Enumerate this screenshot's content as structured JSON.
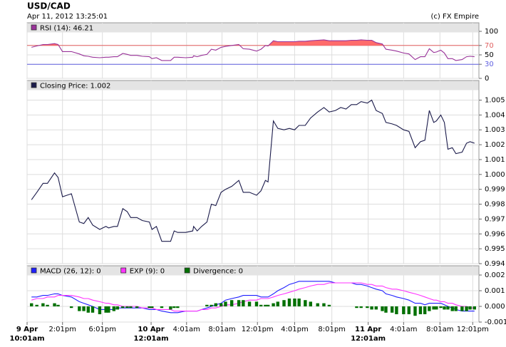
{
  "title": "USD/CAD",
  "subtitle": "Apr 11, 2012 13:25:01",
  "source": "(c) FX Empire",
  "chart_data": [
    {
      "type": "line",
      "ylim": [
        0,
        100
      ],
      "yticks": [
        0,
        30,
        50,
        70,
        100
      ],
      "grid": true,
      "ref_lines": [
        {
          "value": 70,
          "color": "#e06060"
        },
        {
          "value": 30,
          "color": "#6060e0"
        }
      ],
      "series": [
        {
          "name": "RSI (14): 46.21",
          "color": "#993399",
          "fill_above": 70,
          "fill_color": "#ff6b6b",
          "values": [
            66,
            69,
            72,
            72,
            74,
            72,
            57,
            57,
            52,
            48,
            47,
            45,
            44,
            45,
            45,
            46,
            46,
            53,
            51,
            49,
            49,
            47,
            46,
            42,
            44,
            38,
            38,
            45,
            45,
            44,
            45,
            48,
            46,
            49,
            51,
            62,
            60,
            66,
            68,
            70,
            72,
            63,
            62,
            58,
            62,
            70,
            69,
            80,
            78,
            78,
            78,
            78,
            79,
            79,
            80,
            81,
            82,
            80,
            80,
            80,
            80,
            81,
            81,
            82,
            81,
            81,
            76,
            73,
            62,
            60,
            58,
            54,
            52,
            40,
            46,
            46,
            63,
            55,
            56,
            60,
            54,
            42,
            42,
            38,
            40,
            46,
            47,
            46
          ]
        }
      ]
    },
    {
      "type": "line",
      "ylim": [
        0.994,
        1.0056
      ],
      "grid": true,
      "yticks": [
        0.994,
        0.995,
        0.996,
        0.997,
        0.998,
        0.999,
        {
          "value": 1,
          "label": "1.000"
        },
        1.001,
        1.002,
        1.003,
        1.004,
        1.005
      ],
      "series": [
        {
          "name": "Closing Price: 1.002",
          "color": "#1a1a4a",
          "values": [
            0.9983,
            0.9988,
            0.9994,
            0.9994,
            1.0001,
            0.9998,
            0.9985,
            0.9987,
            0.9968,
            0.9967,
            0.9971,
            0.9966,
            0.9963,
            0.9965,
            0.9964,
            0.9965,
            0.9965,
            0.9977,
            0.9975,
            0.9971,
            0.9971,
            0.9969,
            0.9968,
            0.9963,
            0.9965,
            0.9955,
            0.9955,
            0.9962,
            0.9961,
            0.9961,
            0.9962,
            0.9965,
            0.9962,
            0.9965,
            0.9968,
            0.998,
            0.9979,
            0.9988,
            0.999,
            0.9992,
            0.9996,
            0.9988,
            0.9988,
            0.9986,
            0.9989,
            0.9996,
            0.9995,
            1.0036,
            1.0031,
            1.003,
            1.0031,
            1.003,
            1.0033,
            1.0033,
            1.0038,
            1.0042,
            1.0045,
            1.0042,
            1.0043,
            1.0045,
            1.0044,
            1.0047,
            1.0047,
            1.0049,
            1.0048,
            1.005,
            1.0043,
            1.0041,
            1.0035,
            1.0034,
            1.0033,
            1.003,
            1.0029,
            1.0018,
            1.0022,
            1.0023,
            1.0043,
            1.0035,
            1.0036,
            1.004,
            1.0035,
            1.0017,
            1.0018,
            1.0014,
            1.0015,
            1.0021,
            1.0022,
            1.0021
          ]
        }
      ]
    },
    {
      "type": "line",
      "ylim": [
        -0.001,
        0.002
      ],
      "grid": true,
      "yticks": [
        -0.001,
        {
          "value": 0,
          "label": "0.000"
        },
        0.001,
        0.002
      ],
      "xlim": [
        0,
        51
      ],
      "xticks": [
        {
          "value": 0,
          "label": [
            "9 Apr",
            "10:01am"
          ]
        },
        {
          "value": 4,
          "label": "2:01pm"
        },
        {
          "value": 8.5,
          "label": "6:01pm"
        },
        {
          "value": 14,
          "label": [
            "10 Apr",
            "12:01am"
          ]
        },
        {
          "value": 18,
          "label": "4:01am"
        },
        {
          "value": 22,
          "label": "8:01am"
        },
        {
          "value": 26,
          "label": "12:01pm"
        },
        {
          "value": 30.2,
          "label": "4:01pm"
        },
        {
          "value": 34.4,
          "label": "8:01pm"
        },
        {
          "value": 38.5,
          "label": [
            "11 Apr",
            "12:01am"
          ]
        },
        {
          "value": 42.5,
          "label": "4:01am"
        },
        {
          "value": 46.6,
          "label": "8:01am"
        },
        {
          "value": 50.3,
          "label": "12:01pm"
        }
      ],
      "x": [
        0.5,
        1.1,
        1.8,
        2.3,
        3.1,
        3.5,
        4.0,
        5.0,
        5.9,
        6.4,
        6.9,
        7.4,
        8.2,
        8.9,
        9.2,
        9.8,
        10.2,
        10.8,
        11.3,
        11.7,
        12.4,
        13.0,
        13.8,
        14.1,
        14.6,
        15.2,
        16.2,
        16.6,
        17.0,
        17.9,
        18.7,
        18.8,
        19.2,
        19.7,
        20.3,
        20.8,
        21.3,
        21.9,
        22.4,
        23.1,
        23.9,
        24.4,
        25.1,
        25.9,
        26.4,
        26.9,
        27.2,
        27.8,
        28.3,
        29.0,
        29.6,
        30.2,
        30.7,
        31.4,
        32.0,
        32.8,
        33.5,
        34.1,
        34.8,
        35.4,
        36.0,
        36.6,
        37.2,
        37.7,
        38.4,
        38.9,
        39.4,
        40.1,
        40.5,
        41.2,
        41.7,
        42.5,
        43.1,
        43.8,
        44.4,
        44.9,
        45.4,
        45.9,
        46.2,
        46.7,
        47.1,
        47.5,
        48.0,
        48.4,
        49.1,
        49.6,
        50.0,
        50.5
      ],
      "series": [
        {
          "name": "MACD (26, 12): 0",
          "color": "#1f1fff",
          "values": [
            0.0006,
            0.0006,
            0.0007,
            0.0007,
            0.0008,
            0.0008,
            0.0007,
            0.0006,
            0.0003,
            0.0002,
            0.0001,
            0,
            -0.0002,
            -0.0002,
            -0.0002,
            -0.0002,
            -0.0001,
            -0.0001,
            -0.0001,
            -0.0001,
            -0.0001,
            -0.0001,
            -0.0002,
            -0.0002,
            -0.0002,
            -0.0003,
            -0.0004,
            -0.0004,
            -0.0004,
            -0.0003,
            -0.0003,
            -0.0003,
            -0.0003,
            -0.0002,
            -0.0001,
            0,
            0.0001,
            0.0002,
            0.0004,
            0.0005,
            0.0006,
            0.0007,
            0.0007,
            0.0007,
            0.0006,
            0.0006,
            0.0006,
            0.0008,
            0.001,
            0.0012,
            0.0014,
            0.0015,
            0.0016,
            0.0016,
            0.0016,
            0.0016,
            0.0016,
            0.0016,
            0.0015,
            0.0015,
            0.0015,
            0.0015,
            0.0014,
            0.0014,
            0.0013,
            0.0012,
            0.0011,
            0.001,
            0.0008,
            0.0007,
            0.0006,
            0.0005,
            0.0004,
            0.0002,
            0.0002,
            0.0001,
            0.0002,
            0.0002,
            0.0002,
            0.0002,
            0.0001,
            0,
            -0.0001,
            -0.0002,
            -0.0003,
            -0.0003,
            -0.0003,
            -0.0003
          ]
        },
        {
          "name": "EXP (9): 0",
          "color": "#ff33ff",
          "values": [
            0.0004,
            0.0005,
            0.0005,
            0.0006,
            0.0006,
            0.0007,
            0.0007,
            0.0007,
            0.0006,
            0.0005,
            0.0005,
            0.0004,
            0.0003,
            0.0002,
            0.0002,
            0.0001,
            0.0001,
            0,
            0,
            0,
            0,
            -0.0001,
            -0.0001,
            -0.0001,
            -0.0002,
            -0.0002,
            -0.0002,
            -0.0003,
            -0.0003,
            -0.0003,
            -0.0003,
            -0.0003,
            -0.0003,
            -0.0002,
            -0.0002,
            -0.0001,
            -0.0001,
            0,
            0.0001,
            0.0001,
            0.0002,
            0.0003,
            0.0004,
            0.0004,
            0.0005,
            0.0005,
            0.0005,
            0.0006,
            0.0007,
            0.0008,
            0.0009,
            0.001,
            0.0011,
            0.0012,
            0.0013,
            0.0014,
            0.0014,
            0.0015,
            0.0015,
            0.0015,
            0.0015,
            0.0015,
            0.0015,
            0.0015,
            0.0014,
            0.0014,
            0.0013,
            0.0013,
            0.0012,
            0.0011,
            0.0011,
            0.001,
            0.0009,
            0.0008,
            0.0007,
            0.0006,
            0.0005,
            0.0004,
            0.0004,
            0.0003,
            0.0003,
            0.0002,
            0.0002,
            0.0001,
            0,
            0,
            -0.0001,
            -0.0001
          ]
        },
        {
          "name": "Divergence: 0",
          "color": "#007000",
          "type": "bar",
          "values": [
            0.0002,
            0.0001,
            0.0002,
            0.0001,
            0.0002,
            0.0001,
            0,
            -0.0001,
            -0.0003,
            -0.0003,
            -0.0004,
            -0.0004,
            -0.0005,
            -0.0004,
            -0.0004,
            -0.0003,
            -0.0002,
            -0.0001,
            -0.0001,
            -0.0001,
            -0.0001,
            0,
            -0.0001,
            -0.0001,
            0,
            -0.0001,
            -0.0002,
            -0.0001,
            -0.0001,
            0,
            0,
            0,
            0,
            0,
            0.0001,
            0.0001,
            0.0002,
            0.0002,
            0.0003,
            0.0004,
            0.0004,
            0.0004,
            0.0003,
            0.0003,
            0.0001,
            0.0001,
            0.0001,
            0.0002,
            0.0003,
            0.0004,
            0.0005,
            0.0005,
            0.0005,
            0.0004,
            0.0003,
            0.0002,
            0.0002,
            0.0001,
            0,
            0,
            0,
            0,
            -0.0001,
            -0.0001,
            -0.0001,
            -0.0002,
            -0.0002,
            -0.0003,
            -0.0004,
            -0.0004,
            -0.0005,
            -0.0005,
            -0.0005,
            -0.0006,
            -0.0005,
            -0.0005,
            -0.0003,
            -0.0002,
            -0.0002,
            -0.0001,
            -0.0002,
            -0.0002,
            -0.0003,
            -0.0003,
            -0.0003,
            -0.0003,
            -0.0002,
            -0.0002
          ]
        }
      ]
    }
  ]
}
